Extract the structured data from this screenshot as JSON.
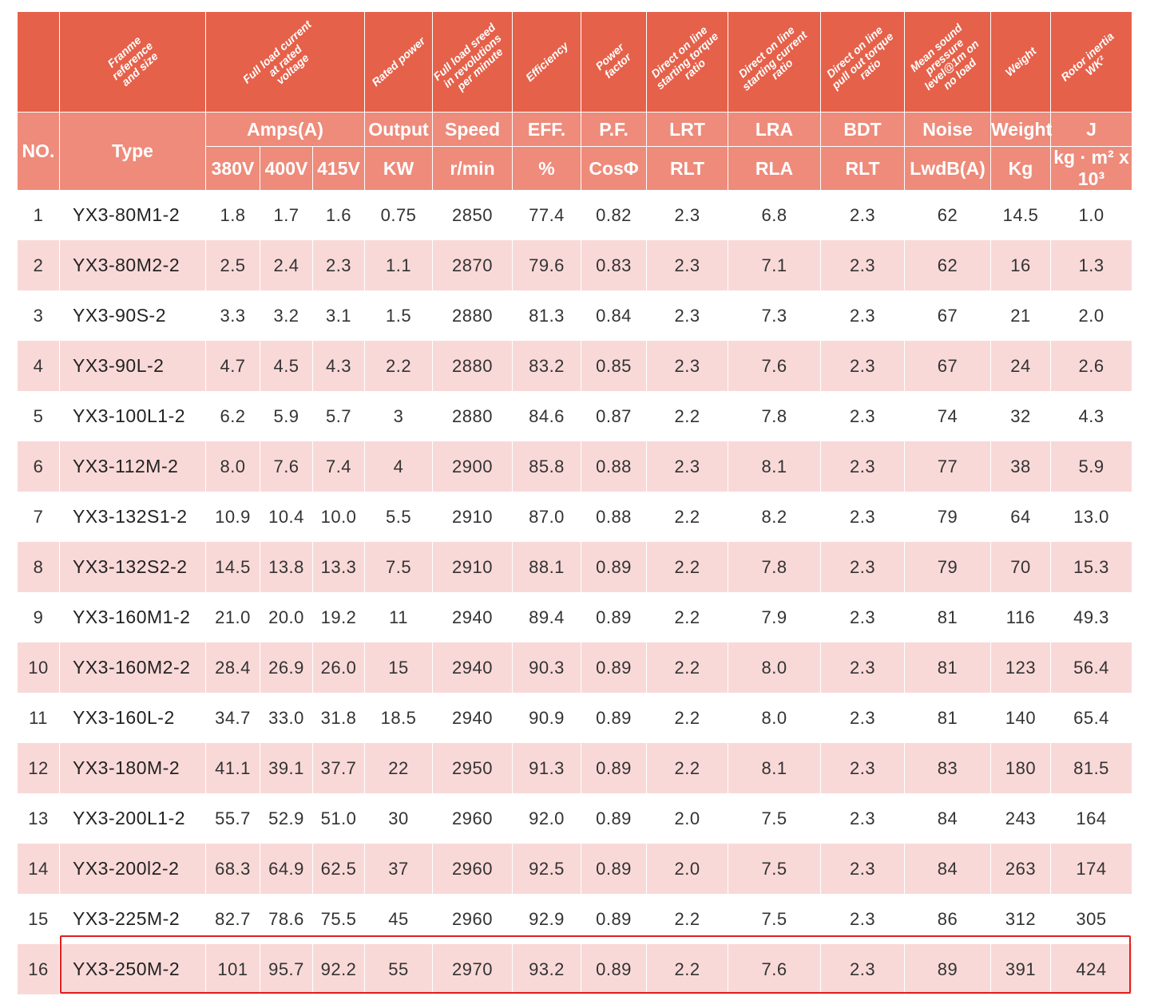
{
  "header": {
    "rotated": [
      "Franme\nreference\nand size",
      "Full load current\nat rated\nvoltage",
      "Rated power",
      "Full load sreed\nin revolutions\nper minute",
      "Efficiency",
      "Power factor",
      "Direct on line\nstarting torque\nratio",
      "Direct on line\nstarting current\nratio",
      "Direct on line\npull out torque\nratio",
      "Mean sound\npressure\nlevel@1m on\nno load",
      "Weight",
      "Rotor inertia\nWK²"
    ],
    "row2": [
      "NO.",
      "Type",
      "Amps(A)",
      "Output",
      "Speed",
      "EFF.",
      "P.F.",
      "LRT",
      "LRA",
      "BDT",
      "Noise",
      "Weight",
      "J"
    ],
    "row3": [
      "380V",
      "400V",
      "415V",
      "KW",
      "r/min",
      "%",
      "CosΦ",
      "RLT",
      "RLA",
      "RLT",
      "LwdB(A)",
      "Kg",
      "kg · m² x 10³"
    ]
  },
  "table": {
    "rows": [
      [
        "1",
        "YX3-80M1-2",
        "1.8",
        "1.7",
        "1.6",
        "0.75",
        "2850",
        "77.4",
        "0.82",
        "2.3",
        "6.8",
        "2.3",
        "62",
        "14.5",
        "1.0"
      ],
      [
        "2",
        "YX3-80M2-2",
        "2.5",
        "2.4",
        "2.3",
        "1.1",
        "2870",
        "79.6",
        "0.83",
        "2.3",
        "7.1",
        "2.3",
        "62",
        "16",
        "1.3"
      ],
      [
        "3",
        "YX3-90S-2",
        "3.3",
        "3.2",
        "3.1",
        "1.5",
        "2880",
        "81.3",
        "0.84",
        "2.3",
        "7.3",
        "2.3",
        "67",
        "21",
        "2.0"
      ],
      [
        "4",
        "YX3-90L-2",
        "4.7",
        "4.5",
        "4.3",
        "2.2",
        "2880",
        "83.2",
        "0.85",
        "2.3",
        "7.6",
        "2.3",
        "67",
        "24",
        "2.6"
      ],
      [
        "5",
        "YX3-100L1-2",
        "6.2",
        "5.9",
        "5.7",
        "3",
        "2880",
        "84.6",
        "0.87",
        "2.2",
        "7.8",
        "2.3",
        "74",
        "32",
        "4.3"
      ],
      [
        "6",
        "YX3-112M-2",
        "8.0",
        "7.6",
        "7.4",
        "4",
        "2900",
        "85.8",
        "0.88",
        "2.3",
        "8.1",
        "2.3",
        "77",
        "38",
        "5.9"
      ],
      [
        "7",
        "YX3-132S1-2",
        "10.9",
        "10.4",
        "10.0",
        "5.5",
        "2910",
        "87.0",
        "0.88",
        "2.2",
        "8.2",
        "2.3",
        "79",
        "64",
        "13.0"
      ],
      [
        "8",
        "YX3-132S2-2",
        "14.5",
        "13.8",
        "13.3",
        "7.5",
        "2910",
        "88.1",
        "0.89",
        "2.2",
        "7.8",
        "2.3",
        "79",
        "70",
        "15.3"
      ],
      [
        "9",
        "YX3-160M1-2",
        "21.0",
        "20.0",
        "19.2",
        "11",
        "2940",
        "89.4",
        "0.89",
        "2.2",
        "7.9",
        "2.3",
        "81",
        "116",
        "49.3"
      ],
      [
        "10",
        "YX3-160M2-2",
        "28.4",
        "26.9",
        "26.0",
        "15",
        "2940",
        "90.3",
        "0.89",
        "2.2",
        "8.0",
        "2.3",
        "81",
        "123",
        "56.4"
      ],
      [
        "11",
        "YX3-160L-2",
        "34.7",
        "33.0",
        "31.8",
        "18.5",
        "2940",
        "90.9",
        "0.89",
        "2.2",
        "8.0",
        "2.3",
        "81",
        "140",
        "65.4"
      ],
      [
        "12",
        "YX3-180M-2",
        "41.1",
        "39.1",
        "37.7",
        "22",
        "2950",
        "91.3",
        "0.89",
        "2.2",
        "8.1",
        "2.3",
        "83",
        "180",
        "81.5"
      ],
      [
        "13",
        "YX3-200L1-2",
        "55.7",
        "52.9",
        "51.0",
        "30",
        "2960",
        "92.0",
        "0.89",
        "2.0",
        "7.5",
        "2.3",
        "84",
        "243",
        "164"
      ],
      [
        "14",
        "YX3-200l2-2",
        "68.3",
        "64.9",
        "62.5",
        "37",
        "2960",
        "92.5",
        "0.89",
        "2.0",
        "7.5",
        "2.3",
        "84",
        "263",
        "174"
      ],
      [
        "15",
        "YX3-225M-2",
        "82.7",
        "78.6",
        "75.5",
        "45",
        "2960",
        "92.9",
        "0.89",
        "2.2",
        "7.5",
        "2.3",
        "86",
        "312",
        "305"
      ],
      [
        "16",
        "YX3-250M-2",
        "101",
        "95.7",
        "92.2",
        "55",
        "2970",
        "93.2",
        "0.89",
        "2.2",
        "7.6",
        "2.3",
        "89",
        "391",
        "424"
      ]
    ]
  }
}
